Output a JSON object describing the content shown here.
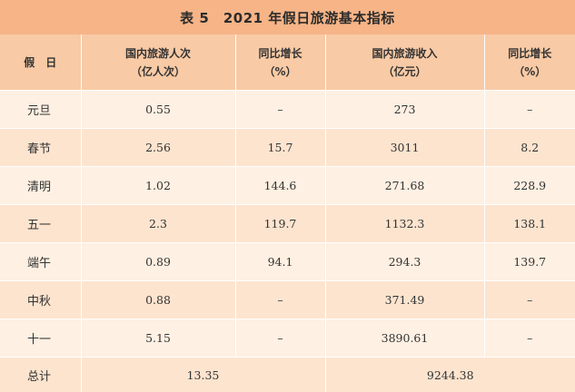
{
  "title": "表 5　2021 年假日旅游基本指标",
  "headers": {
    "holiday": "假　日",
    "visits_line1": "国内旅游人次",
    "visits_line2": "（亿人次）",
    "visits_growth_line1": "同比增长",
    "visits_growth_line2": "（%）",
    "revenue_line1": "国内旅游收入",
    "revenue_line2": "（亿元）",
    "revenue_growth_line1": "同比增长",
    "revenue_growth_line2": "（%）"
  },
  "rows": [
    {
      "name": "元旦",
      "visits": "0.55",
      "visits_growth": "–",
      "revenue": "273",
      "revenue_growth": "–"
    },
    {
      "name": "春节",
      "visits": "2.56",
      "visits_growth": "15.7",
      "revenue": "3011",
      "revenue_growth": "8.2"
    },
    {
      "name": "清明",
      "visits": "1.02",
      "visits_growth": "144.6",
      "revenue": "271.68",
      "revenue_growth": "228.9"
    },
    {
      "name": "五一",
      "visits": "2.3",
      "visits_growth": "119.7",
      "revenue": "1132.3",
      "revenue_growth": "138.1"
    },
    {
      "name": "端午",
      "visits": "0.89",
      "visits_growth": "94.1",
      "revenue": "294.3",
      "revenue_growth": "139.7"
    },
    {
      "name": "中秋",
      "visits": "0.88",
      "visits_growth": "–",
      "revenue": "371.49",
      "revenue_growth": "–"
    },
    {
      "name": "十一",
      "visits": "5.15",
      "visits_growth": "–",
      "revenue": "3890.61",
      "revenue_growth": "–"
    }
  ],
  "total": {
    "name": "总计",
    "visits": "13.35",
    "revenue": "9244.38"
  }
}
